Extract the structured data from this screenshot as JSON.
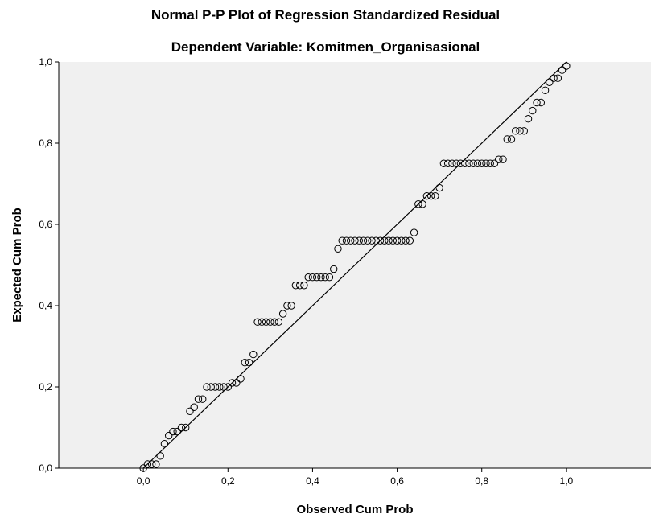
{
  "chart_data": {
    "type": "scatter",
    "title": "Normal P-P Plot of Regression Standardized Residual",
    "subtitle": "Dependent Variable: Komitmen_Organisasional",
    "xlabel": "Observed Cum Prob",
    "ylabel": "Expected Cum Prob",
    "xlim": [
      -0.2,
      1.2
    ],
    "ylim": [
      0.0,
      1.0
    ],
    "xticks": [
      "0,0",
      "0,2",
      "0,4",
      "0,6",
      "0,8",
      "1,0"
    ],
    "yticks": [
      "0,0",
      "0,2",
      "0,4",
      "0,6",
      "0,8",
      "1,0"
    ],
    "grid": false,
    "reference_line": {
      "from": [
        0,
        0
      ],
      "to": [
        1,
        1
      ]
    },
    "background": "#f0f0f0",
    "marker_color": "#000000",
    "points": [
      [
        0.0,
        0.0
      ],
      [
        0.01,
        0.01
      ],
      [
        0.02,
        0.01
      ],
      [
        0.03,
        0.01
      ],
      [
        0.04,
        0.03
      ],
      [
        0.05,
        0.06
      ],
      [
        0.06,
        0.08
      ],
      [
        0.07,
        0.09
      ],
      [
        0.08,
        0.09
      ],
      [
        0.09,
        0.1
      ],
      [
        0.1,
        0.1
      ],
      [
        0.11,
        0.14
      ],
      [
        0.12,
        0.15
      ],
      [
        0.13,
        0.17
      ],
      [
        0.14,
        0.17
      ],
      [
        0.15,
        0.2
      ],
      [
        0.16,
        0.2
      ],
      [
        0.17,
        0.2
      ],
      [
        0.18,
        0.2
      ],
      [
        0.19,
        0.2
      ],
      [
        0.2,
        0.2
      ],
      [
        0.21,
        0.21
      ],
      [
        0.22,
        0.21
      ],
      [
        0.23,
        0.22
      ],
      [
        0.24,
        0.26
      ],
      [
        0.25,
        0.26
      ],
      [
        0.26,
        0.28
      ],
      [
        0.27,
        0.36
      ],
      [
        0.28,
        0.36
      ],
      [
        0.29,
        0.36
      ],
      [
        0.3,
        0.36
      ],
      [
        0.31,
        0.36
      ],
      [
        0.32,
        0.36
      ],
      [
        0.33,
        0.38
      ],
      [
        0.34,
        0.4
      ],
      [
        0.35,
        0.4
      ],
      [
        0.36,
        0.45
      ],
      [
        0.37,
        0.45
      ],
      [
        0.38,
        0.45
      ],
      [
        0.39,
        0.47
      ],
      [
        0.4,
        0.47
      ],
      [
        0.41,
        0.47
      ],
      [
        0.42,
        0.47
      ],
      [
        0.43,
        0.47
      ],
      [
        0.44,
        0.47
      ],
      [
        0.45,
        0.49
      ],
      [
        0.46,
        0.54
      ],
      [
        0.47,
        0.56
      ],
      [
        0.48,
        0.56
      ],
      [
        0.49,
        0.56
      ],
      [
        0.5,
        0.56
      ],
      [
        0.51,
        0.56
      ],
      [
        0.52,
        0.56
      ],
      [
        0.53,
        0.56
      ],
      [
        0.54,
        0.56
      ],
      [
        0.55,
        0.56
      ],
      [
        0.56,
        0.56
      ],
      [
        0.57,
        0.56
      ],
      [
        0.58,
        0.56
      ],
      [
        0.59,
        0.56
      ],
      [
        0.6,
        0.56
      ],
      [
        0.61,
        0.56
      ],
      [
        0.62,
        0.56
      ],
      [
        0.63,
        0.56
      ],
      [
        0.64,
        0.58
      ],
      [
        0.65,
        0.65
      ],
      [
        0.66,
        0.65
      ],
      [
        0.67,
        0.67
      ],
      [
        0.68,
        0.67
      ],
      [
        0.69,
        0.67
      ],
      [
        0.7,
        0.69
      ],
      [
        0.71,
        0.75
      ],
      [
        0.72,
        0.75
      ],
      [
        0.73,
        0.75
      ],
      [
        0.74,
        0.75
      ],
      [
        0.75,
        0.75
      ],
      [
        0.76,
        0.75
      ],
      [
        0.77,
        0.75
      ],
      [
        0.78,
        0.75
      ],
      [
        0.79,
        0.75
      ],
      [
        0.8,
        0.75
      ],
      [
        0.81,
        0.75
      ],
      [
        0.82,
        0.75
      ],
      [
        0.83,
        0.75
      ],
      [
        0.84,
        0.76
      ],
      [
        0.85,
        0.76
      ],
      [
        0.86,
        0.81
      ],
      [
        0.87,
        0.81
      ],
      [
        0.88,
        0.83
      ],
      [
        0.89,
        0.83
      ],
      [
        0.9,
        0.83
      ],
      [
        0.91,
        0.86
      ],
      [
        0.92,
        0.88
      ],
      [
        0.93,
        0.9
      ],
      [
        0.94,
        0.9
      ],
      [
        0.95,
        0.93
      ],
      [
        0.96,
        0.95
      ],
      [
        0.97,
        0.96
      ],
      [
        0.98,
        0.96
      ],
      [
        0.99,
        0.98
      ],
      [
        1.0,
        0.99
      ]
    ]
  }
}
